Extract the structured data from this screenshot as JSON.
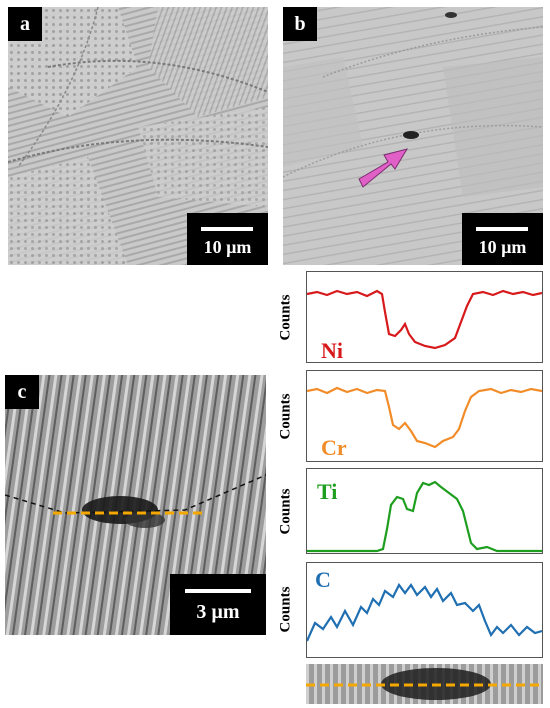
{
  "panels": {
    "a": {
      "label": "a",
      "scale_text": "10 µm"
    },
    "b": {
      "label": "b",
      "scale_text": "10 µm"
    },
    "c": {
      "label": "c",
      "scale_text": "3 µm"
    }
  },
  "profiles": {
    "axis_label": "Counts",
    "items": [
      {
        "element": "Ni",
        "color": "#d7191c"
      },
      {
        "element": "Cr",
        "color": "#f28c28"
      },
      {
        "element": "Ti",
        "color": "#1e9e1e"
      },
      {
        "element": "C",
        "color": "#1f6fb2"
      }
    ]
  },
  "colors": {
    "line_scan": "#f5a800",
    "arrow": "#e060c8"
  }
}
